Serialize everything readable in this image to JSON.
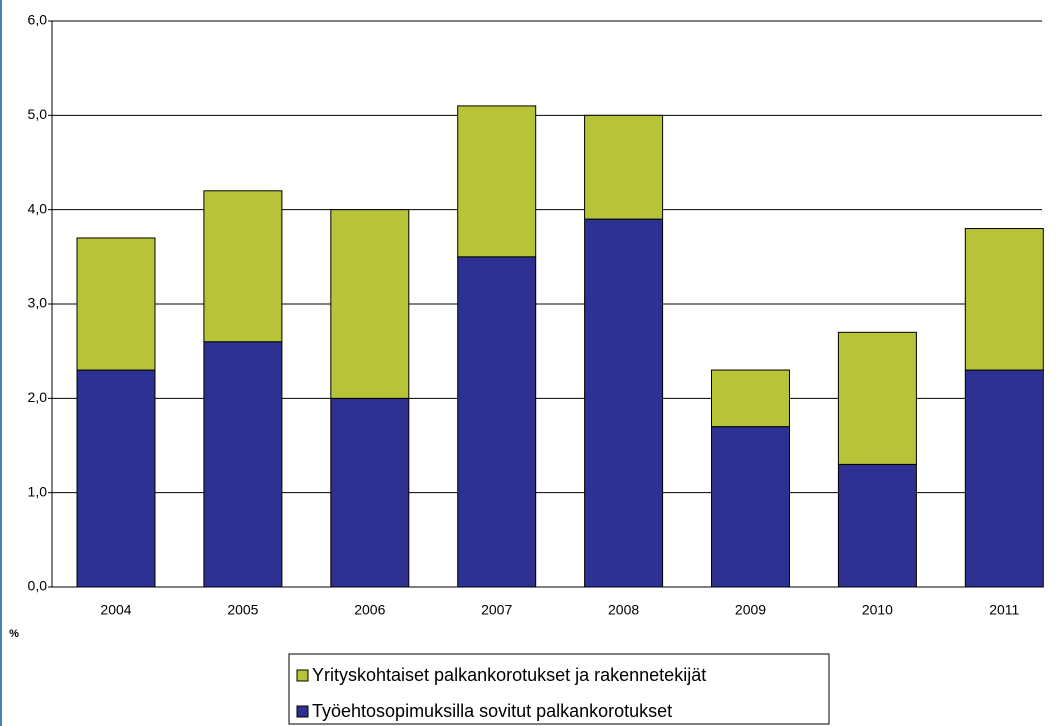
{
  "chart_data": {
    "type": "stacked_bar",
    "categories": [
      "2004",
      "2005",
      "2006",
      "2007",
      "2008",
      "2009",
      "2010",
      "2011"
    ],
    "series": [
      {
        "name": "Työehtosopimuksilla sovitut palkankorotukset",
        "color": "#2e3192",
        "values": [
          2.3,
          2.6,
          2.0,
          3.5,
          3.9,
          1.7,
          1.3,
          2.3
        ]
      },
      {
        "name": "Yrityskohtaiset palkankorotukset ja rakennetekijät",
        "color": "#b8c437",
        "values": [
          1.4,
          1.6,
          2.0,
          1.6,
          1.1,
          0.6,
          1.4,
          1.5
        ]
      }
    ],
    "y_label": "%",
    "ylim": [
      0,
      6
    ],
    "yticks": [
      {
        "value": 0,
        "label": "0,0"
      },
      {
        "value": 1,
        "label": "1,0"
      },
      {
        "value": 2,
        "label": "2,0"
      },
      {
        "value": 3,
        "label": "3,0"
      },
      {
        "value": 4,
        "label": "4,0"
      },
      {
        "value": 5,
        "label": "5,0"
      },
      {
        "value": 6,
        "label": "6,0"
      }
    ],
    "grid": true,
    "legend": "bottom"
  }
}
